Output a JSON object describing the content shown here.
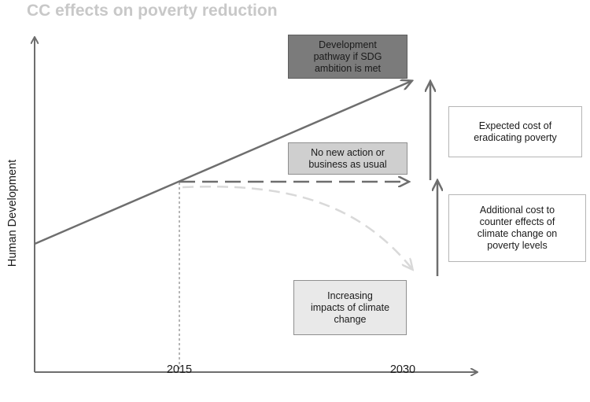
{
  "title": "CC effects on poverty reduction",
  "axes": {
    "y_label": "Human Development",
    "x_ticks": [
      "2015",
      "2030"
    ]
  },
  "boxes": {
    "sdg_pathway": [
      "Development",
      "pathway if SDG",
      "ambition is met"
    ],
    "business_as_usual": [
      "No new action or",
      "business as usual"
    ],
    "climate_impacts": [
      "Increasing",
      "impacts of climate",
      "change"
    ],
    "expected_cost": [
      "Expected cost of",
      "eradicating poverty"
    ],
    "additional_cost": [
      "Additional cost to",
      "counter effects of",
      "climate change on",
      "poverty levels"
    ]
  },
  "colors": {
    "title": "#c8c8c8",
    "axis": "#6e6e6e",
    "sdg_line": "#6e6e6e",
    "bau_line": "#6e6e6e",
    "climate_line": "#d9d9d9",
    "sdg_box": "#7b7b7b",
    "bau_box": "#cfcfcf",
    "impacts_box": "#e9e9e9"
  }
}
